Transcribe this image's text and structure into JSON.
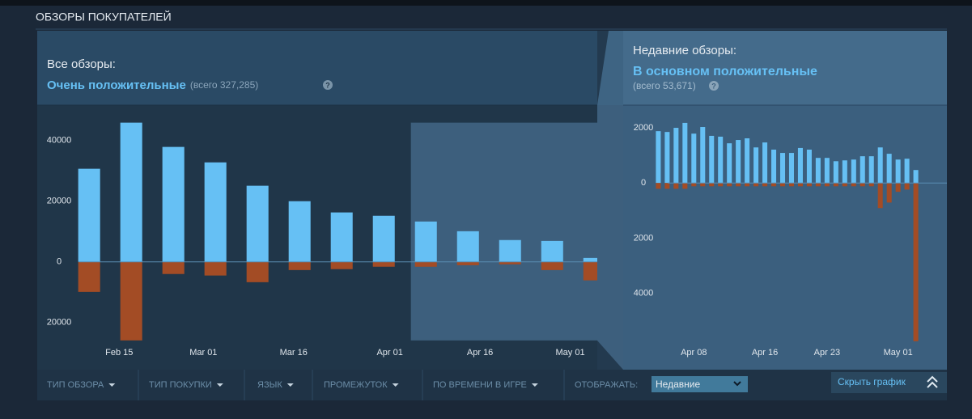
{
  "header": {
    "title": "ОБЗОРЫ ПОКУПАТЕЛЕЙ"
  },
  "summary": {
    "all": {
      "label": "Все обзоры:",
      "rating": "Очень положительные",
      "total": "(всего 327,285)",
      "help": "?"
    },
    "recent": {
      "label": "Недавние обзоры:",
      "rating": "В основном положительные",
      "total": "(всего 53,671)",
      "help": "?"
    }
  },
  "filters": [
    "ТИП ОБЗОРА",
    "ТИП ПОКУПКИ",
    "ЯЗЫК",
    "ПРОМЕЖУТОК",
    "ПО ВРЕМЕНИ В ИГРЕ"
  ],
  "display": {
    "label": "ОТОБРАЖАТЬ:",
    "value": "Недавние"
  },
  "toggle": "Скрыть график",
  "chart_data": [
    {
      "type": "bar",
      "x": [
        41,
        48,
        55,
        62,
        69,
        76,
        83,
        90,
        97,
        104,
        111,
        118,
        125
      ],
      "xlim": [
        32.5,
        125.5
      ],
      "xticks": [
        {
          "value": 46,
          "label": "Feb 15"
        },
        {
          "value": 60,
          "label": "Mar 01"
        },
        {
          "value": 75,
          "label": "Mar 16"
        },
        {
          "value": 91,
          "label": "Apr 01"
        },
        {
          "value": 106,
          "label": "Apr 16"
        },
        {
          "value": 121,
          "label": "May 01"
        }
      ],
      "ylim": [
        -31000,
        49000
      ],
      "yticks": [
        40000,
        20000,
        0,
        {
          "value": -20000,
          "label": "20000"
        }
      ],
      "highlight": [
        94.5,
        125.5
      ],
      "series": [
        {
          "color": "#66c0f4",
          "values": [
            30700,
            45900,
            37900,
            32800,
            25100,
            20000,
            16300,
            15200,
            13300,
            10100,
            7200,
            6900,
            1300
          ]
        },
        {
          "color": "#a34c25",
          "values": [
            -9900,
            -25900,
            -4000,
            -4500,
            -6700,
            -2700,
            -2400,
            -1600,
            -1600,
            -1100,
            -800,
            -2700,
            -6100
          ]
        }
      ]
    },
    {
      "type": "bar",
      "x": [
        94,
        95,
        96,
        97,
        98,
        99,
        100,
        101,
        102,
        103,
        104,
        105,
        106,
        107,
        108,
        109,
        110,
        111,
        112,
        113,
        114,
        115,
        116,
        117,
        118,
        119,
        120,
        121,
        122,
        123
      ],
      "xlim": [
        90.5,
        126.5
      ],
      "xticks": [
        {
          "value": 98,
          "label": "Apr 08"
        },
        {
          "value": 106,
          "label": "Apr 16"
        },
        {
          "value": 113,
          "label": "Apr 23"
        },
        {
          "value": 121,
          "label": "May 01"
        }
      ],
      "ylim": [
        -6300,
        2500
      ],
      "yticks": [
        2000,
        0,
        {
          "value": -2000,
          "label": "2000"
        },
        {
          "value": -4000,
          "label": "4000"
        }
      ],
      "series": [
        {
          "color": "#66c0f4",
          "values": [
            1880,
            1850,
            2000,
            2180,
            1790,
            2030,
            1710,
            1680,
            1440,
            1560,
            1620,
            1290,
            1470,
            1210,
            1090,
            1090,
            1270,
            1210,
            910,
            910,
            790,
            820,
            850,
            970,
            970,
            1290,
            1060,
            850,
            880,
            470
          ]
        },
        {
          "color": "#a34c25",
          "values": [
            -210,
            -210,
            -210,
            -210,
            -120,
            -120,
            -120,
            -120,
            -120,
            -120,
            -120,
            -120,
            -120,
            -120,
            -120,
            -120,
            -120,
            -120,
            -120,
            -120,
            -120,
            -120,
            -120,
            -120,
            -120,
            -910,
            -710,
            -320,
            -240,
            -5740
          ]
        }
      ]
    }
  ]
}
